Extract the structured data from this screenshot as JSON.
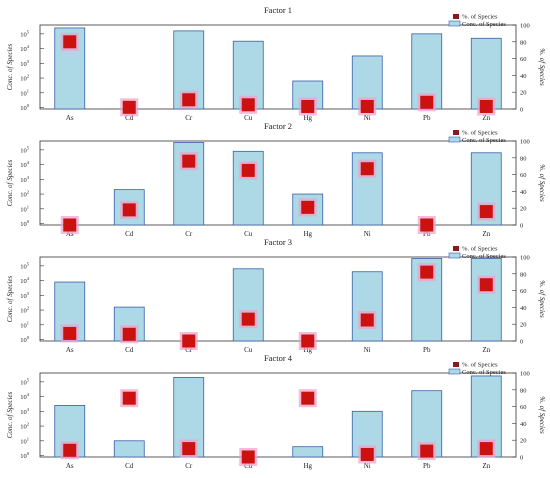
{
  "figure": {
    "legend_square_label": "%. of Species",
    "legend_bar_label": "Conc. of Species",
    "left_axis_label": "Conc. of Species",
    "right_axis_label": "%. of Species",
    "colors": {
      "bar_fill": "#add8e6",
      "bar_stroke": "#3a5fa8",
      "marker_fill": "#cc1111",
      "marker_halo": "#f0a0c8",
      "axis": "#333333"
    }
  },
  "chart_data": [
    {
      "type": "bar",
      "title": "Factor 1",
      "categories": [
        "As",
        "Cd",
        "Cr",
        "Cu",
        "Hg",
        "Ni",
        "Pb",
        "Zn"
      ],
      "left_axis": {
        "label": "Conc. of Species",
        "scale": "log",
        "ticks_exp": [
          0,
          1,
          2,
          3,
          4,
          5
        ],
        "range_exp": [
          -0.1,
          5.6
        ]
      },
      "right_axis": {
        "label": "%. of Species",
        "ylim": [
          0,
          100
        ],
        "ticks": [
          0,
          20,
          40,
          60,
          80,
          100
        ]
      },
      "series": [
        {
          "name": "Conc. of Species",
          "kind": "bar",
          "values_log10": [
            5.4,
            null,
            5.2,
            4.5,
            1.8,
            3.5,
            5.0,
            4.7
          ]
        },
        {
          "name": "%. of Species",
          "kind": "marker",
          "values": [
            80,
            2,
            11,
            5,
            3,
            3,
            8,
            3
          ]
        }
      ]
    },
    {
      "type": "bar",
      "title": "Factor 2",
      "categories": [
        "As",
        "Cd",
        "Cr",
        "Cu",
        "Hg",
        "Ni",
        "Pb",
        "Zn"
      ],
      "left_axis": {
        "label": "Conc. of Species",
        "scale": "log",
        "ticks_exp": [
          0,
          1,
          2,
          3,
          4,
          5
        ],
        "range_exp": [
          -0.1,
          5.6
        ]
      },
      "right_axis": {
        "label": "%. of Species",
        "ylim": [
          0,
          100
        ],
        "ticks": [
          0,
          20,
          40,
          60,
          80,
          100
        ]
      },
      "series": [
        {
          "name": "Conc. of Species",
          "kind": "bar",
          "values_log10": [
            null,
            2.3,
            5.5,
            4.9,
            2.0,
            4.8,
            null,
            4.8
          ]
        },
        {
          "name": "%. of Species",
          "kind": "marker",
          "values": [
            0,
            18,
            76,
            65,
            21,
            67,
            0,
            16
          ]
        }
      ]
    },
    {
      "type": "bar",
      "title": "Factor 3",
      "categories": [
        "As",
        "Cd",
        "Cr",
        "Cu",
        "Hg",
        "Ni",
        "Pb",
        "Zn"
      ],
      "left_axis": {
        "label": "Conc. of Species",
        "scale": "log",
        "ticks_exp": [
          0,
          1,
          2,
          3,
          4,
          5
        ],
        "range_exp": [
          -0.1,
          5.6
        ]
      },
      "right_axis": {
        "label": "%. of Species",
        "ylim": [
          0,
          100
        ],
        "ticks": [
          0,
          20,
          40,
          60,
          80,
          100
        ]
      },
      "series": [
        {
          "name": "Conc. of Species",
          "kind": "bar",
          "values_log10": [
            3.9,
            2.2,
            null,
            4.8,
            null,
            4.6,
            5.5,
            5.5
          ]
        },
        {
          "name": "%. of Species",
          "kind": "marker",
          "values": [
            9,
            8,
            0,
            26,
            0,
            25,
            82,
            67
          ]
        }
      ]
    },
    {
      "type": "bar",
      "title": "Factor 4",
      "categories": [
        "As",
        "Cd",
        "Cr",
        "Cu",
        "Hg",
        "Ni",
        "Pb",
        "Zn"
      ],
      "left_axis": {
        "label": "Conc. of Species",
        "scale": "log",
        "ticks_exp": [
          0,
          1,
          2,
          3,
          4,
          5
        ],
        "range_exp": [
          -0.1,
          5.6
        ]
      },
      "right_axis": {
        "label": "%. of Species",
        "ylim": [
          0,
          100
        ],
        "ticks": [
          0,
          20,
          40,
          60,
          80,
          100
        ]
      },
      "series": [
        {
          "name": "Conc. of Species",
          "kind": "bar",
          "values_log10": [
            3.4,
            1.0,
            5.3,
            null,
            0.6,
            3.0,
            4.4,
            5.4
          ]
        },
        {
          "name": "%. of Species",
          "kind": "marker",
          "values": [
            8,
            70,
            10,
            0,
            70,
            3,
            7,
            10
          ]
        }
      ]
    }
  ]
}
